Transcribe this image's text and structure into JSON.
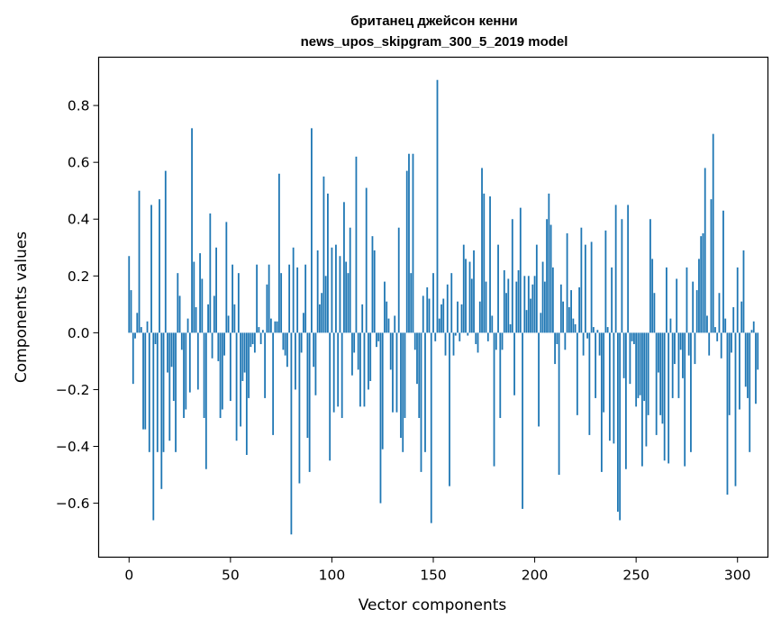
{
  "chart_data": {
    "type": "bar",
    "title_lines": [
      "британец джейсон кенни",
      "news_upos_skipgram_300_5_2019 model"
    ],
    "xlabel": "Vector components",
    "ylabel": "Components values",
    "xlim": [
      -15,
      315
    ],
    "ylim": [
      -0.79,
      0.97
    ],
    "xticks": [
      0,
      50,
      100,
      150,
      200,
      250,
      300
    ],
    "xtick_labels": [
      "0",
      "50",
      "100",
      "150",
      "200",
      "250",
      "300"
    ],
    "yticks": [
      -0.6,
      -0.4,
      -0.2,
      0.0,
      0.2,
      0.4,
      0.6,
      0.8
    ],
    "ytick_labels": [
      "−0.6",
      "−0.4",
      "−0.2",
      "0.0",
      "0.2",
      "0.4",
      "0.6",
      "0.8"
    ],
    "grid": false,
    "bar_color": "#1f77b4",
    "bar_width": 0.8,
    "values": [
      0.27,
      0.15,
      -0.18,
      -0.02,
      0.07,
      0.5,
      0.02,
      -0.34,
      -0.34,
      0.04,
      -0.42,
      0.45,
      -0.66,
      -0.04,
      -0.42,
      0.47,
      -0.55,
      -0.42,
      0.57,
      -0.14,
      -0.38,
      -0.12,
      -0.24,
      -0.42,
      0.21,
      0.13,
      -0.06,
      -0.3,
      -0.27,
      0.05,
      -0.21,
      0.72,
      0.25,
      0.09,
      -0.2,
      0.28,
      0.19,
      -0.3,
      -0.48,
      0.1,
      0.42,
      -0.09,
      0.13,
      0.3,
      -0.1,
      -0.3,
      -0.27,
      -0.08,
      0.39,
      0.06,
      -0.24,
      0.24,
      0.1,
      -0.38,
      0.21,
      -0.33,
      -0.17,
      -0.14,
      -0.43,
      -0.23,
      -0.05,
      -0.04,
      -0.07,
      0.24,
      0.02,
      -0.04,
      0.01,
      -0.23,
      0.17,
      0.24,
      0.05,
      -0.36,
      0.04,
      0.04,
      0.56,
      0.21,
      -0.06,
      -0.08,
      -0.12,
      0.24,
      -0.71,
      0.3,
      -0.2,
      0.23,
      -0.53,
      -0.07,
      0.07,
      0.24,
      -0.37,
      -0.49,
      0.72,
      -0.12,
      -0.22,
      0.29,
      0.1,
      0.14,
      0.55,
      0.2,
      0.49,
      -0.45,
      0.3,
      -0.28,
      0.31,
      -0.26,
      0.27,
      -0.3,
      0.46,
      0.25,
      0.21,
      0.37,
      -0.15,
      -0.07,
      0.62,
      -0.13,
      -0.26,
      0.1,
      -0.26,
      0.51,
      -0.2,
      -0.17,
      0.34,
      0.29,
      -0.05,
      -0.03,
      -0.6,
      -0.41,
      0.18,
      0.11,
      0.05,
      -0.13,
      -0.28,
      0.06,
      -0.28,
      0.37,
      -0.37,
      -0.42,
      -0.3,
      0.57,
      0.63,
      0.21,
      0.63,
      -0.06,
      -0.18,
      -0.3,
      -0.49,
      0.13,
      -0.42,
      0.16,
      0.12,
      -0.67,
      0.21,
      -0.03,
      0.89,
      0.05,
      0.1,
      0.12,
      -0.08,
      0.17,
      -0.54,
      0.21,
      -0.08,
      -0.01,
      0.11,
      -0.03,
      0.1,
      0.31,
      0.26,
      -0.01,
      0.25,
      0.19,
      0.29,
      -0.04,
      -0.07,
      0.11,
      0.58,
      0.49,
      0.18,
      -0.03,
      0.48,
      0.06,
      -0.47,
      -0.06,
      0.31,
      -0.3,
      -0.06,
      0.22,
      0.14,
      0.19,
      0.03,
      0.4,
      -0.22,
      0.18,
      0.22,
      0.44,
      -0.62,
      0.2,
      0.08,
      0.2,
      0.12,
      0.17,
      0.2,
      0.31,
      -0.33,
      0.07,
      0.25,
      0.18,
      0.4,
      0.49,
      0.38,
      0.23,
      -0.11,
      -0.04,
      -0.5,
      0.17,
      0.11,
      -0.06,
      0.35,
      0.09,
      0.15,
      0.05,
      0.03,
      -0.29,
      0.16,
      0.37,
      -0.08,
      0.31,
      -0.02,
      -0.36,
      0.32,
      0.02,
      -0.23,
      0.01,
      -0.08,
      -0.49,
      -0.28,
      0.36,
      0.02,
      -0.38,
      0.23,
      -0.39,
      0.45,
      -0.63,
      -0.66,
      0.4,
      -0.16,
      -0.48,
      0.45,
      -0.18,
      -0.03,
      -0.04,
      -0.26,
      -0.23,
      -0.22,
      -0.47,
      -0.24,
      -0.4,
      -0.29,
      0.4,
      0.26,
      0.14,
      -0.36,
      -0.14,
      -0.29,
      -0.32,
      -0.45,
      0.23,
      -0.46,
      0.05,
      -0.23,
      -0.11,
      0.19,
      -0.23,
      -0.06,
      -0.16,
      -0.47,
      0.23,
      -0.08,
      -0.42,
      0.18,
      -0.11,
      0.15,
      0.26,
      0.34,
      0.35,
      0.58,
      0.06,
      -0.08,
      0.47,
      0.7,
      0.02,
      -0.03,
      0.14,
      -0.09,
      0.43,
      0.05,
      -0.57,
      -0.29,
      -0.07,
      0.09,
      -0.54,
      0.23,
      -0.27,
      0.11,
      0.29,
      -0.19,
      -0.23,
      -0.42,
      0.01,
      0.04,
      -0.25,
      -0.13
    ]
  }
}
